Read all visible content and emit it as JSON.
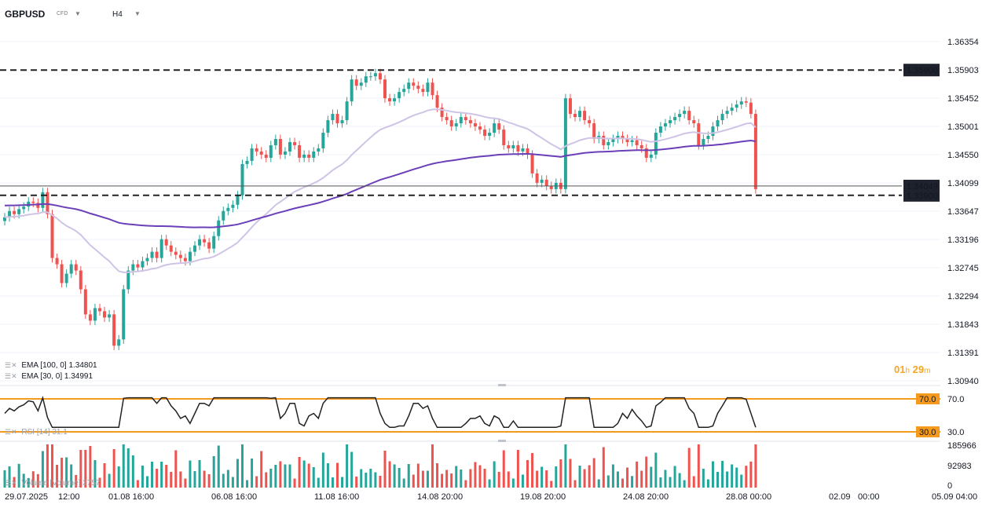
{
  "header": {
    "symbol": "GBPUSD",
    "instrument_type": "CFD",
    "timeframe": "H4"
  },
  "price_axis": [
    "1.36354",
    "1.35903",
    "1.35452",
    "1.35001",
    "1.34550",
    "1.34099",
    "1.33647",
    "1.33196",
    "1.32745",
    "1.32294",
    "1.31843",
    "1.31391",
    "1.30940"
  ],
  "levels": {
    "upper": "1.35900",
    "lower": "1.33900",
    "current": "1.34049"
  },
  "legend": {
    "ema100": {
      "name": "EMA",
      "params": "[100, 0]",
      "value": "1.34801"
    },
    "ema30": {
      "name": "EMA",
      "params": "[30, 0]",
      "value": "1.34991"
    }
  },
  "timer": {
    "hours": "01",
    "h": "h",
    "minutes": "29",
    "m": "m"
  },
  "rsi": {
    "label": "RSI [14]",
    "value": "31.1",
    "upper": "70.0",
    "lower": "30.0"
  },
  "volume": {
    "label": "Volume",
    "params": "[Volume]",
    "value": "3757",
    "ticks": [
      "185966",
      "92983",
      "0"
    ]
  },
  "time_axis": [
    "29.07.2025",
    "12:00",
    "01.08 16:00",
    "06.08 16:00",
    "11.08 16:00",
    "14.08 20:00",
    "19.08 20:00",
    "24.08 20:00",
    "28.08 00:00",
    "02.09",
    "00:00",
    "05.09 04:00"
  ],
  "colors": {
    "up": "#26a69a",
    "down": "#ef5350",
    "ema100": "#6a3fb8",
    "ema30": "#cfc4e6",
    "band": "#f59a1c",
    "rsi": "#222222"
  },
  "chart_data": {
    "type": "candlestick",
    "y_range": [
      1.3094,
      1.36354
    ],
    "closes": [
      1.3355,
      1.3365,
      1.336,
      1.3368,
      1.3372,
      1.338,
      1.3378,
      1.337,
      1.3395,
      1.336,
      1.329,
      1.328,
      1.325,
      1.3265,
      1.328,
      1.327,
      1.324,
      1.32,
      1.319,
      1.321,
      1.3205,
      1.3195,
      1.32,
      1.315,
      1.316,
      1.324,
      1.327,
      1.328,
      1.3275,
      1.3285,
      1.329,
      1.33,
      1.329,
      1.332,
      1.331,
      1.33,
      1.3295,
      1.329,
      1.3285,
      1.33,
      1.331,
      1.332,
      1.3315,
      1.3305,
      1.3325,
      1.335,
      1.3365,
      1.337,
      1.3375,
      1.339,
      1.344,
      1.3445,
      1.3465,
      1.346,
      1.3455,
      1.345,
      1.347,
      1.348,
      1.3455,
      1.346,
      1.3475,
      1.347,
      1.345,
      1.3455,
      1.345,
      1.346,
      1.3465,
      1.349,
      1.351,
      1.352,
      1.3505,
      1.351,
      1.354,
      1.3575,
      1.3565,
      1.357,
      1.358,
      1.358,
      1.3585,
      1.3575,
      1.3545,
      1.354,
      1.3545,
      1.3555,
      1.356,
      1.357,
      1.3565,
      1.356,
      1.3555,
      1.357,
      1.355,
      1.353,
      1.3515,
      1.351,
      1.35,
      1.3505,
      1.3515,
      1.351,
      1.3505,
      1.35,
      1.3495,
      1.3485,
      1.349,
      1.3505,
      1.3495,
      1.347,
      1.3465,
      1.347,
      1.346,
      1.3465,
      1.3455,
      1.3425,
      1.341,
      1.3415,
      1.3405,
      1.34,
      1.341,
      1.34,
      1.3545,
      1.352,
      1.3515,
      1.3525,
      1.351,
      1.3505,
      1.348,
      1.3485,
      1.347,
      1.3475,
      1.348,
      1.3485,
      1.348,
      1.3475,
      1.3478,
      1.347,
      1.3465,
      1.345,
      1.3455,
      1.349,
      1.35,
      1.3505,
      1.351,
      1.3515,
      1.352,
      1.3525,
      1.351,
      1.3505,
      1.347,
      1.348,
      1.3485,
      1.35,
      1.351,
      1.352,
      1.3525,
      1.353,
      1.3535,
      1.354,
      1.3538,
      1.352,
      1.34
    ]
  }
}
